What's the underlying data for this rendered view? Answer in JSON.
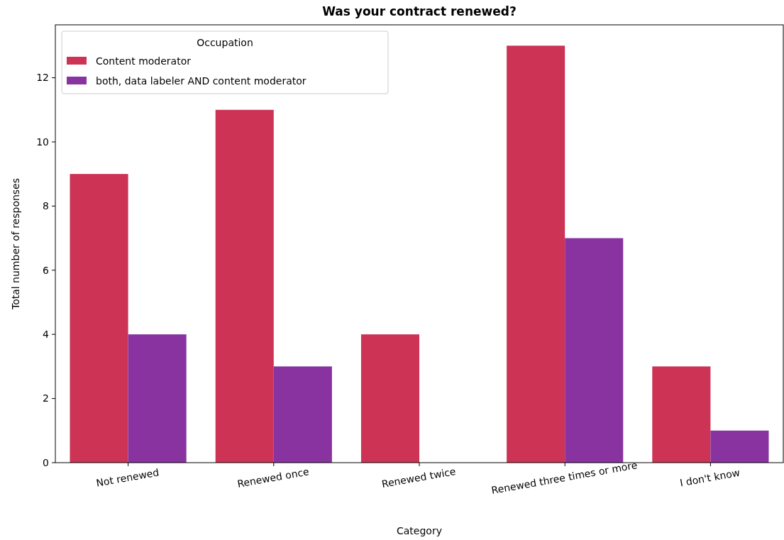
{
  "chart_data": {
    "type": "bar",
    "title": "Was your contract renewed?",
    "xlabel": "Category",
    "ylabel": "Total number of responses",
    "legend_title": "Occupation",
    "categories": [
      "Not renewed",
      "Renewed once",
      "Renewed twice",
      "Renewed three times or more",
      "I don't know"
    ],
    "series": [
      {
        "name": "Content moderator",
        "color": "#cc3355",
        "values": [
          9,
          11,
          4,
          13,
          3
        ]
      },
      {
        "name": "both, data labeler AND content moderator",
        "color": "#8833a0",
        "values": [
          4,
          3,
          null,
          7,
          1
        ]
      }
    ],
    "ylim": [
      0,
      13.65
    ],
    "yticks": [
      0,
      2,
      4,
      6,
      8,
      10,
      12
    ],
    "grid": false,
    "legend": "top left"
  }
}
